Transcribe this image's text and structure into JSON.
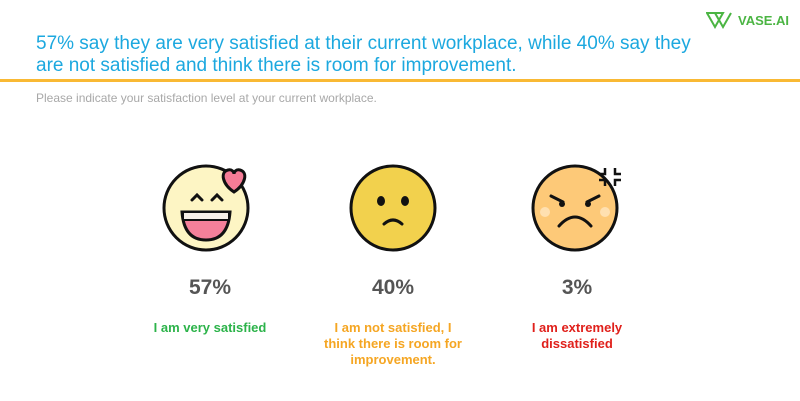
{
  "header": {
    "title": "57% say they are very satisfied at their current workplace, while 40% say they are not satisfied and think there is room for improvement.",
    "logo_text": "VASE.AI"
  },
  "question": "Please indicate your satisfaction level at your current workplace.",
  "results": [
    {
      "percent": "57%",
      "label": "I am very satisfied",
      "color": "#2cb34a",
      "icon": "heart-eyes-smile-icon"
    },
    {
      "percent": "40%",
      "label": "I am not satisfied, I think there is room for improvement.",
      "color": "#f5a623",
      "icon": "sad-face-icon"
    },
    {
      "percent": "3%",
      "label": "I am extremely dissatisfied",
      "color": "#e0201b",
      "icon": "angry-face-icon"
    }
  ]
}
